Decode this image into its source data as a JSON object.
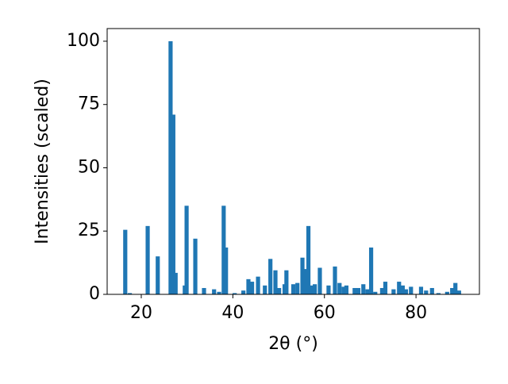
{
  "chart_data": {
    "type": "bar",
    "xlabel": "2θ (°)",
    "ylabel": "Intensities (scaled)",
    "x": [
      16.5,
      17.5,
      21.4,
      23.6,
      26.4,
      27.0,
      27.5,
      29.5,
      29.9,
      31.8,
      33.7,
      35.9,
      37.0,
      38.0,
      38.5,
      40.4,
      42.3,
      43.4,
      44.2,
      45.5,
      47.0,
      48.2,
      49.3,
      50.1,
      51.3,
      51.7,
      53.2,
      54.1,
      55.2,
      55.8,
      56.5,
      57.2,
      57.9,
      59.0,
      60.9,
      62.3,
      63.3,
      64.2,
      64.8,
      66.6,
      67.4,
      68.5,
      69.4,
      70.2,
      71.1,
      72.6,
      73.3,
      75.1,
      76.3,
      77.1,
      77.8,
      78.9,
      81.1,
      82.2,
      83.5,
      84.9,
      86.8,
      87.9,
      88.6,
      89.4
    ],
    "values": [
      25.5,
      0.5,
      27,
      15,
      100,
      71,
      8.5,
      3.5,
      35,
      22,
      2.5,
      2,
      1,
      35,
      18.5,
      0.5,
      1.5,
      6,
      5,
      7,
      3.5,
      14,
      9.5,
      2.5,
      4,
      9.5,
      4,
      4.5,
      14.5,
      10,
      27,
      3.5,
      4,
      10.5,
      3.5,
      11,
      4.5,
      3,
      3.5,
      2.5,
      2.5,
      4,
      2,
      18.5,
      1,
      2.5,
      5,
      2,
      5,
      3.5,
      2,
      3,
      3,
      1.5,
      2.5,
      0.5,
      1,
      2.5,
      4.5,
      1.5
    ],
    "color": "#1f77b4",
    "xlim": [
      12.55,
      93.85
    ],
    "xticks": [
      20,
      40,
      60,
      80
    ],
    "ylim": [
      0,
      105
    ],
    "yticks": [
      0,
      25,
      50,
      75,
      100
    ]
  }
}
